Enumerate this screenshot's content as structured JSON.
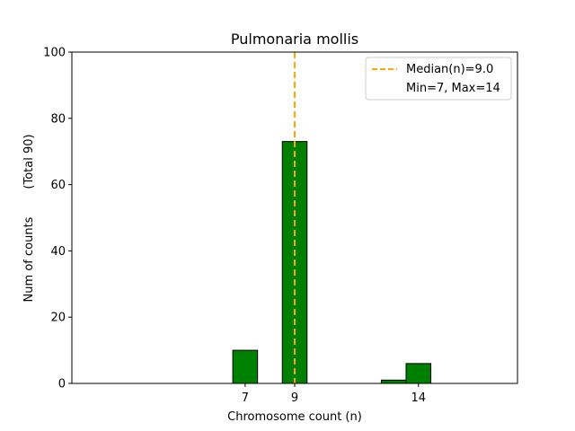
{
  "chart_data": {
    "type": "bar",
    "title": "Pulmonaria mollis",
    "xlabel": "Chromosome count (n)",
    "ylabel": "Num of counts",
    "ylabel_total": "(Total 90)",
    "xlim": [
      0,
      18
    ],
    "ylim": [
      0,
      100
    ],
    "x_ticks": [
      7,
      9,
      14
    ],
    "y_ticks": [
      0,
      20,
      40,
      60,
      80,
      100
    ],
    "bars": [
      {
        "x": 7,
        "value": 10
      },
      {
        "x": 9,
        "value": 73
      },
      {
        "x": 13,
        "value": 1
      },
      {
        "x": 14,
        "value": 6
      }
    ],
    "median_line": {
      "x": 9.0,
      "color": "#ffa500"
    },
    "bar_color": "#008000",
    "legend": {
      "placement": "top-right",
      "entries": [
        "Median(n)=9.0",
        "Min=7, Max=14"
      ]
    }
  }
}
